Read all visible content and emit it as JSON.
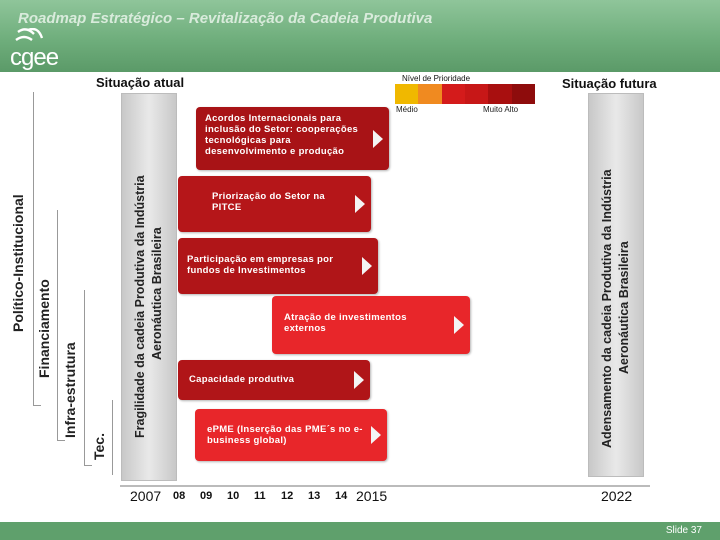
{
  "header": {
    "title": "Roadmap Estratégico – Revitalização da Cadeia Produtiva",
    "logo_text": "cgee"
  },
  "footer": {
    "slide": "Slide 37"
  },
  "left_labels": {
    "politico": "Político-Institucional",
    "financiamento": "Financiamento",
    "infra": "Infra-estrutura",
    "tec": "Tec."
  },
  "current": {
    "title": "Situação atual",
    "line1": "Fragilidade da cadeia Produtiva da Indústria",
    "line2": "Aeronáutica Brasileira"
  },
  "future": {
    "title": "Situação futura",
    "line1": "Adensamento da cadeia Produtiva da Indústria",
    "line2": "Aeronáutica Brasileira"
  },
  "priority": {
    "title": "Nível de Prioridade",
    "low_label": "Médio",
    "high_label": "Muito Alto",
    "colors": [
      "#f0b800",
      "#f08a20",
      "#d41b1b",
      "#c71717",
      "#a80f0f",
      "#8e0c0c"
    ]
  },
  "actions": [
    {
      "text": "Acordos Internacionais para inclusão do Setor: cooperações tecnológicas para desenvolvimento e produção",
      "color": "#a81316"
    },
    {
      "text": "Priorização do Setor na PITCE",
      "color": "#b51619"
    },
    {
      "text": "Participação em empresas por fundos de Investimentos",
      "color": "#b01518"
    },
    {
      "text": "Atração de investimentos externos",
      "color": "#e8262a"
    },
    {
      "text": "Capacidade produtiva",
      "color": "#b01518"
    },
    {
      "text": "ePME (Inserção das PME´s no e-business global)",
      "color": "#e8262a"
    }
  ],
  "years": {
    "start": "2007",
    "ticks": [
      "08",
      "09",
      "10",
      "11",
      "12",
      "13",
      "14"
    ],
    "mid": "2015",
    "end": "2022"
  }
}
